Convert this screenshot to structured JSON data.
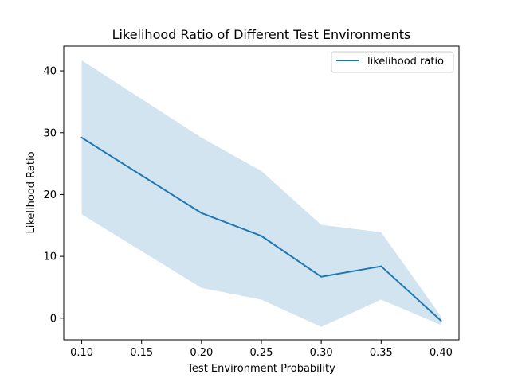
{
  "chart_data": {
    "type": "line",
    "title": "Likelihood Ratio of Different Test Environments",
    "xlabel": "Test Environment Probability",
    "ylabel": "Likelihood Ratio",
    "xlim": [
      0.085,
      0.415
    ],
    "ylim": [
      -3.5,
      44
    ],
    "xticks": [
      "0.10",
      "0.15",
      "0.20",
      "0.25",
      "0.30",
      "0.35",
      "0.40"
    ],
    "yticks": [
      "0",
      "10",
      "20",
      "30",
      "40"
    ],
    "grid": false,
    "legend_position": "top-right",
    "series": [
      {
        "name": "likelihood ratio",
        "color": "#1f77b4",
        "x": [
          0.1,
          0.2,
          0.25,
          0.3,
          0.35,
          0.4
        ],
        "values": [
          29.2,
          17.0,
          13.3,
          6.7,
          8.4,
          -0.4
        ],
        "band_upper": [
          41.7,
          29.2,
          23.8,
          15.1,
          13.9,
          0.3
        ],
        "band_lower": [
          16.8,
          4.9,
          3.0,
          -1.4,
          3.0,
          -1.1
        ],
        "band_color": "#1f77b4",
        "band_opacity": 0.2
      }
    ]
  }
}
